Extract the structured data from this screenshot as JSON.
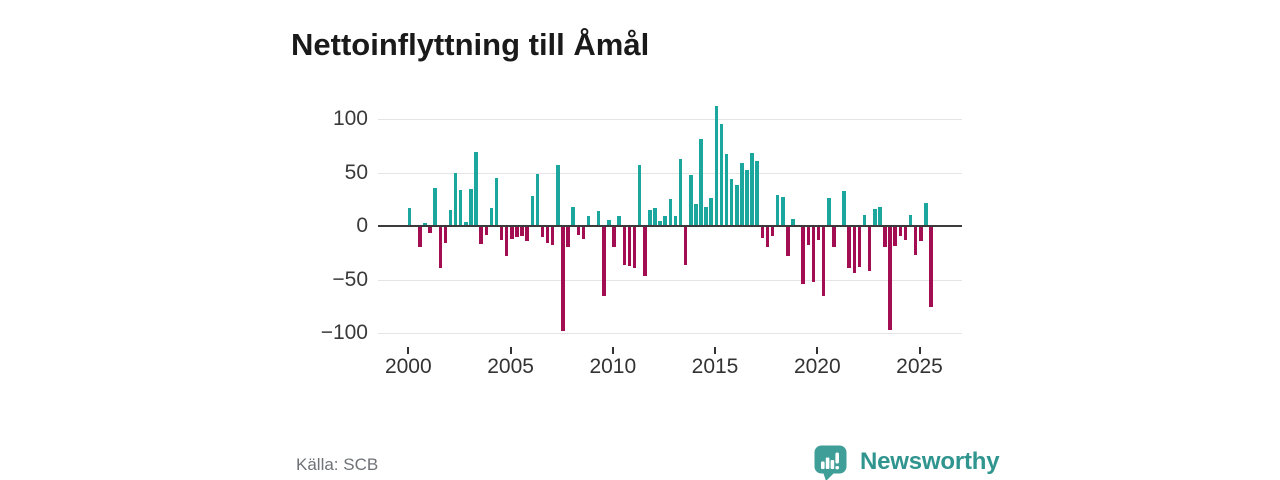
{
  "title": "Nettoinflyttning till Åmål",
  "source": "Källa: SCB",
  "brand": {
    "name": "Newsworthy",
    "icon": "newsworthy-speech-bubble-bar-chart-icon",
    "color": "#3f9e97",
    "text_color": "#2f958e"
  },
  "colors": {
    "positive_bar": "#1ba79d",
    "negative_bar": "#a30d52",
    "gridline": "#e4e4e4",
    "zero_line": "#3b3b3b",
    "axis_text": "#3a3a3a",
    "source_text": "#6e7277",
    "title_text": "#1a1a1a",
    "background": "#ffffff"
  },
  "chart_data": {
    "type": "bar",
    "title": "Nettoinflyttning till Åmål",
    "xlabel": "",
    "ylabel": "",
    "frequency": "quarterly",
    "start_period": "2000-Q1",
    "end_period": "2025-Q3",
    "ylim": [
      -110,
      120
    ],
    "grid": "horizontal",
    "legend": "none",
    "y_ticks": [
      100,
      50,
      0,
      -50,
      -100
    ],
    "y_tick_labels": [
      "100",
      "50",
      "0",
      "−50",
      "−100"
    ],
    "x_ticks": [
      2000,
      2005,
      2010,
      2015,
      2020,
      2025
    ],
    "x_tick_labels": [
      "2000",
      "2005",
      "2010",
      "2015",
      "2020",
      "2025"
    ],
    "values": [
      17,
      0,
      -19,
      3,
      -6,
      36,
      -38,
      -15,
      15,
      50,
      34,
      4,
      35,
      69,
      -16,
      -7,
      17,
      45,
      -12,
      -27,
      -11,
      -9,
      -8,
      -13,
      28,
      49,
      -9,
      -15,
      -17,
      57,
      -97,
      -19,
      18,
      -7,
      -11,
      9,
      0,
      14,
      -64,
      6,
      -19,
      9,
      -35,
      -36,
      -38,
      57,
      -46,
      15,
      17,
      5,
      9,
      25,
      9,
      63,
      -35,
      48,
      21,
      81,
      18,
      26,
      112,
      95,
      67,
      44,
      38,
      59,
      52,
      68,
      61,
      -10,
      -19,
      -8,
      29,
      27,
      -27,
      7,
      0,
      -53,
      -17,
      -51,
      -12,
      -64,
      26,
      -19,
      0,
      33,
      -38,
      -43,
      -37,
      10,
      -41,
      16,
      18,
      -19,
      -96,
      -18,
      -8,
      -12,
      10,
      -26,
      -13,
      22,
      -75
    ]
  }
}
